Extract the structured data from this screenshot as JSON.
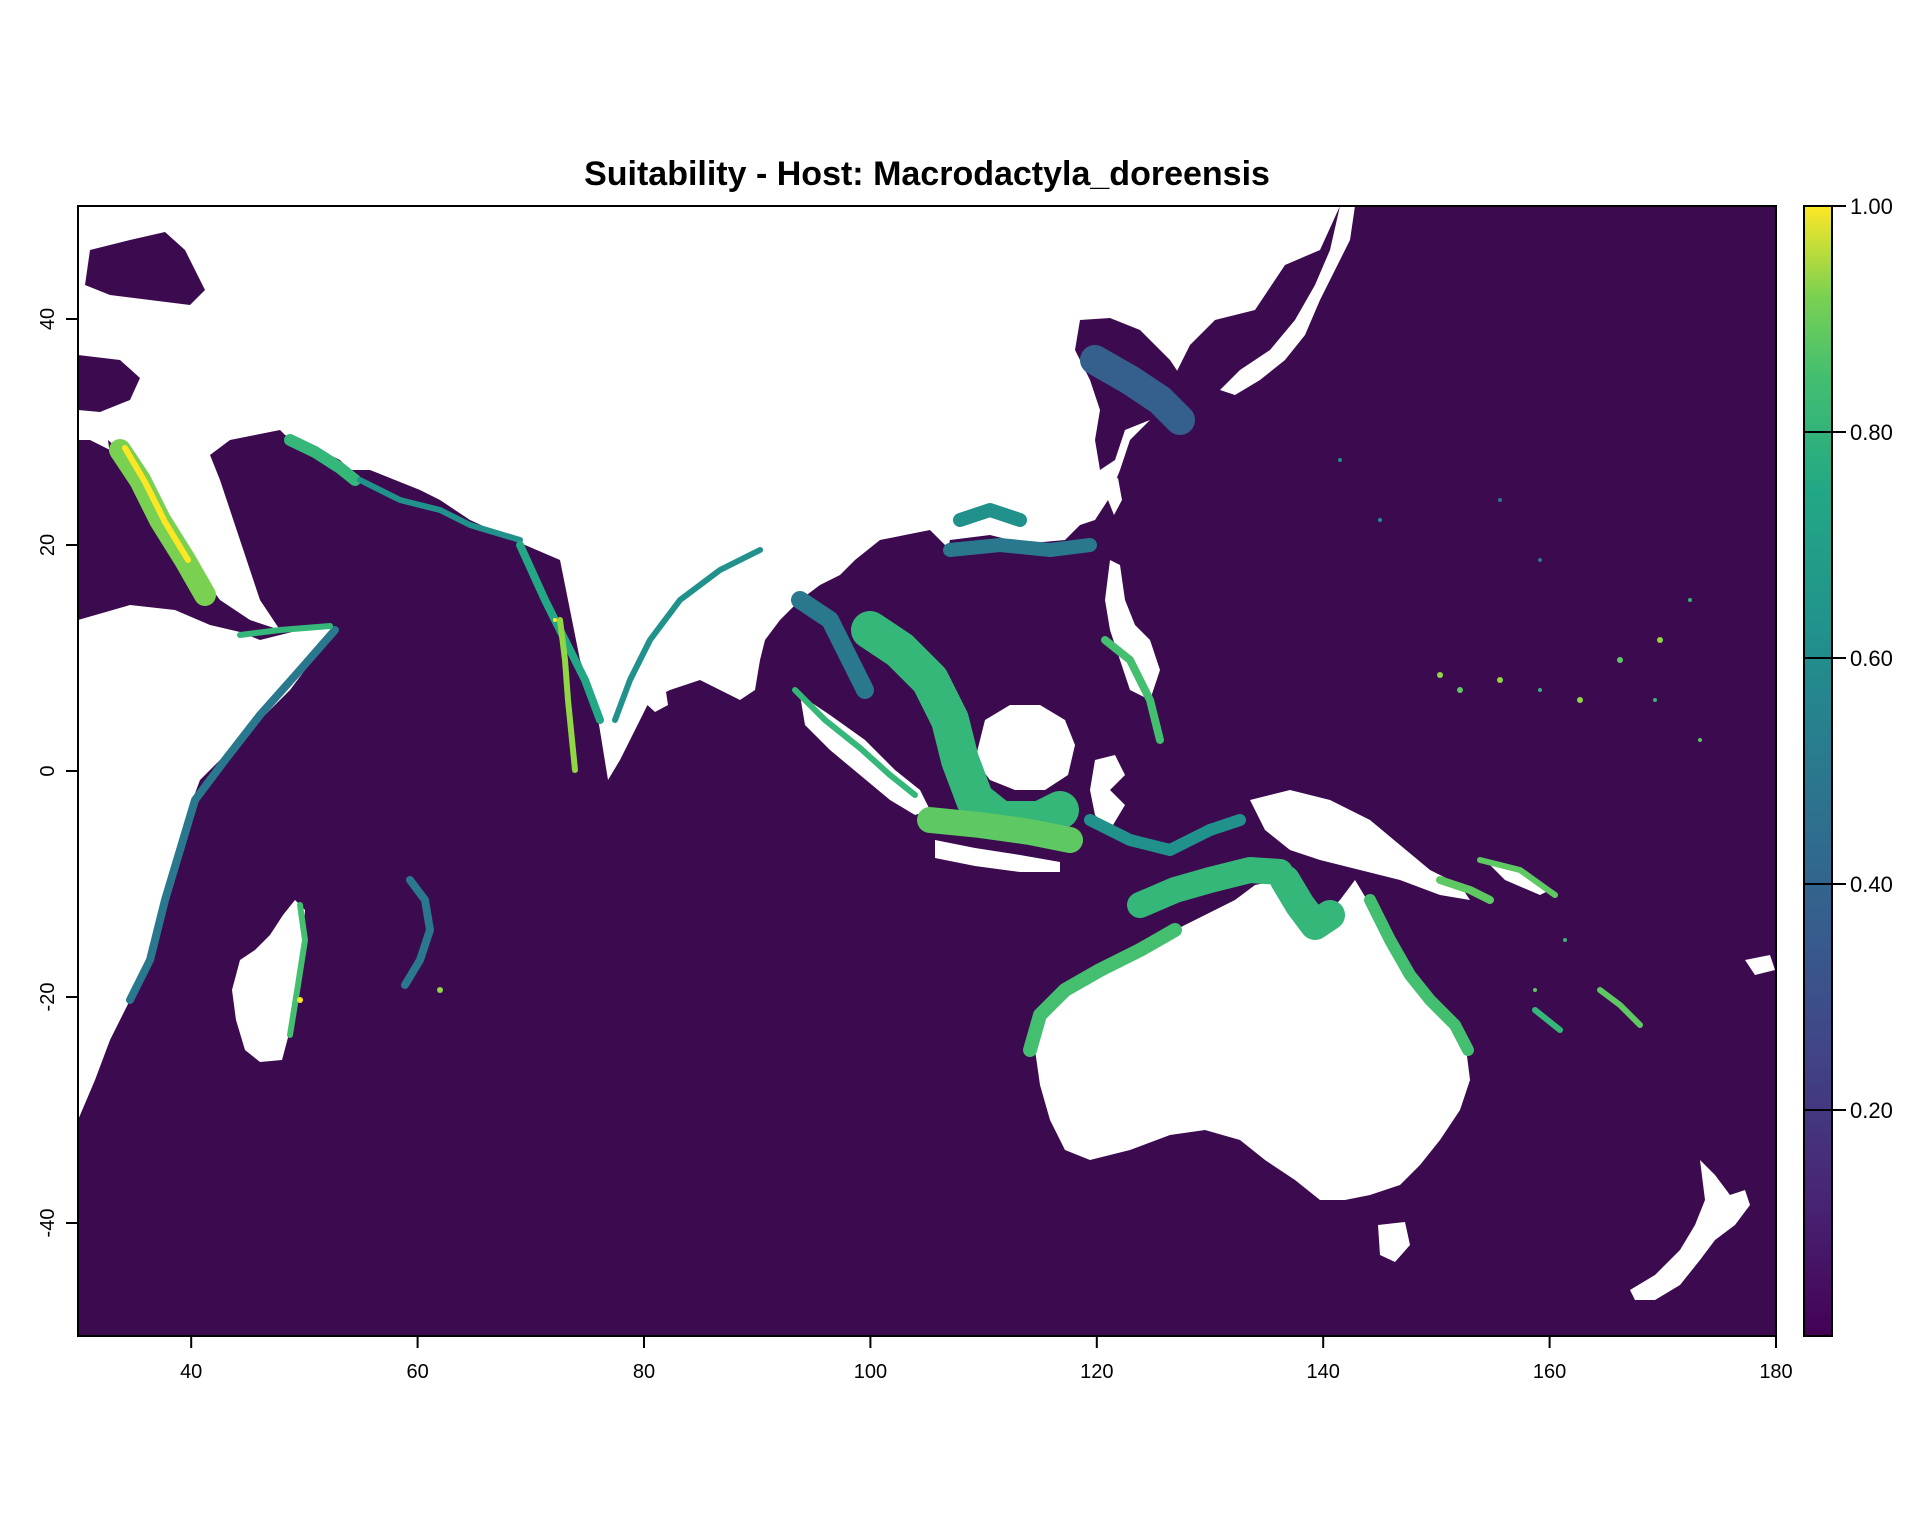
{
  "title": "Suitability - Host: Macrodactyla_doreensis",
  "map": {
    "type": "raster-map",
    "xlim": [
      30,
      180
    ],
    "ylim": [
      -50,
      50
    ],
    "x_ticks": [
      "40",
      "60",
      "80",
      "100",
      "120",
      "140",
      "160",
      "180"
    ],
    "y_ticks": [
      "40",
      "20",
      "0",
      "-20",
      "-40"
    ],
    "ocean_color": "#440154",
    "land_color": "#ffffff",
    "coastal_colors": [
      "#3b528b",
      "#21918c",
      "#35b779",
      "#5ec962",
      "#90d743",
      "#fde725"
    ]
  },
  "legend": {
    "colors": [
      "#440154",
      "#3b528b",
      "#21918c",
      "#5ec962",
      "#fde725"
    ],
    "labels": [
      "1.00",
      "0.80",
      "0.60",
      "0.40",
      "0.20"
    ],
    "range": [
      0,
      1
    ]
  }
}
